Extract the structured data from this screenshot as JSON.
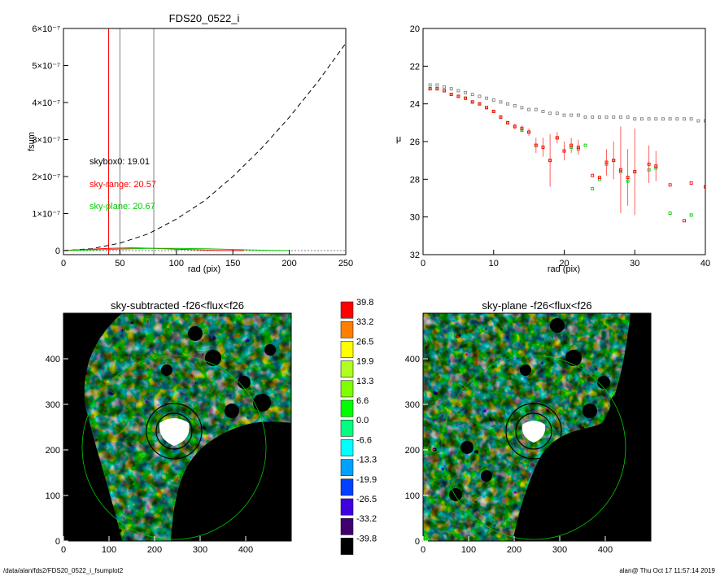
{
  "chart_data": [
    {
      "type": "line",
      "title": "FDS20_0522_i",
      "xlabel": "rad (pix)",
      "ylabel": "fsum",
      "xlim": [
        0,
        250
      ],
      "ylim": [
        0,
        6e-07
      ],
      "x_ticks": [
        "0",
        "50",
        "100",
        "150",
        "200",
        "250"
      ],
      "y_ticks": [
        "0",
        "1×10⁻⁷",
        "2×10⁻⁷",
        "3×10⁻⁷",
        "4×10⁻⁷",
        "5×10⁻⁷",
        "6×10⁻⁷"
      ],
      "vlines": [
        {
          "x": 40,
          "color": "#ff0000"
        },
        {
          "x": 50,
          "color": "#808080"
        },
        {
          "x": 80,
          "color": "#808080"
        }
      ],
      "series": [
        {
          "style": "dashed",
          "color": "#000000",
          "x": [
            0,
            25,
            50,
            75,
            100,
            125,
            150,
            175,
            200,
            225,
            250
          ],
          "values": [
            0,
            5e-09,
            2e-08,
            4.5e-08,
            8.5e-08,
            1.35e-07,
            2e-07,
            2.75e-07,
            3.6e-07,
            4.55e-07,
            5.6e-07
          ]
        },
        {
          "style": "solid",
          "color": "#ff0000",
          "x": [
            0,
            20,
            40,
            60,
            80,
            100,
            120,
            140,
            160
          ],
          "values": [
            0,
            3e-09,
            6e-09,
            7e-09,
            6e-09,
            4e-09,
            2e-09,
            0.0,
            0.0
          ]
        },
        {
          "style": "solid",
          "color": "#00cc00",
          "x": [
            0,
            25,
            50,
            75,
            100,
            125,
            150,
            175,
            200
          ],
          "values": [
            0,
            2e-09,
            4e-09,
            6e-09,
            6e-09,
            5e-09,
            3e-09,
            1e-09,
            0.0
          ]
        }
      ],
      "annotations": [
        {
          "text": "skybox0: 19.01",
          "color": "#000000"
        },
        {
          "text": "sky-range: 20.57",
          "color": "#ff0000"
        },
        {
          "text": "sky-plane: 20.67",
          "color": "#00cc00"
        }
      ]
    },
    {
      "type": "scatter",
      "xlabel": "rad (pix)",
      "ylabel": "μ",
      "xlim": [
        0,
        40
      ],
      "ylim": [
        32,
        20
      ],
      "x_ticks": [
        "0",
        "10",
        "20",
        "30",
        "40"
      ],
      "y_ticks": [
        "20",
        "22",
        "24",
        "26",
        "28",
        "30",
        "32"
      ],
      "series": [
        {
          "color": "#808080",
          "x": [
            1,
            2,
            3,
            4,
            5,
            6,
            7,
            8,
            9,
            10,
            11,
            12,
            13,
            14,
            15,
            16,
            17,
            18,
            19,
            20,
            21,
            22,
            23,
            24,
            25,
            26,
            27,
            28,
            29,
            30,
            31,
            32,
            33,
            34,
            35,
            36,
            37,
            38,
            39,
            40
          ],
          "values": [
            23.0,
            23.0,
            23.1,
            23.2,
            23.3,
            23.4,
            23.5,
            23.6,
            23.7,
            23.8,
            23.9,
            24.0,
            24.1,
            24.2,
            24.3,
            24.3,
            24.4,
            24.5,
            24.5,
            24.6,
            24.6,
            24.6,
            24.7,
            24.7,
            24.7,
            24.7,
            24.7,
            24.7,
            24.7,
            24.8,
            24.8,
            24.8,
            24.8,
            24.8,
            24.8,
            24.8,
            24.8,
            24.8,
            24.9,
            24.9
          ]
        },
        {
          "color": "#00cc00",
          "x": [
            1,
            2,
            3,
            4,
            5,
            6,
            7,
            8,
            9,
            10,
            11,
            12,
            13,
            14,
            15,
            16,
            17,
            18,
            19,
            20,
            21,
            22,
            23,
            24,
            25,
            26,
            27,
            28,
            29,
            30,
            32,
            33,
            35,
            38
          ],
          "values": [
            23.2,
            23.2,
            23.3,
            23.5,
            23.6,
            23.7,
            23.9,
            24.0,
            24.2,
            24.4,
            24.7,
            25.0,
            25.2,
            25.4,
            25.5,
            26.2,
            26.3,
            27.0,
            25.8,
            26.5,
            26.3,
            26.4,
            26.2,
            28.5,
            28.0,
            27.2,
            27.0,
            27.6,
            28.1,
            27.6,
            27.5,
            27.4,
            29.8,
            29.9
          ]
        },
        {
          "color": "#ff0000",
          "x": [
            1,
            2,
            3,
            4,
            5,
            6,
            7,
            8,
            9,
            10,
            11,
            12,
            13,
            14,
            15,
            16,
            17,
            18,
            19,
            20,
            21,
            22,
            24,
            25,
            26,
            27,
            28,
            29,
            30,
            32,
            33,
            35,
            37,
            38,
            40
          ],
          "values": [
            23.2,
            23.2,
            23.3,
            23.5,
            23.6,
            23.7,
            23.9,
            24.0,
            24.2,
            24.4,
            24.7,
            25.0,
            25.2,
            25.3,
            25.5,
            26.2,
            26.3,
            27.0,
            25.8,
            26.5,
            26.2,
            26.3,
            27.8,
            27.9,
            27.1,
            27.0,
            27.5,
            27.9,
            27.6,
            27.2,
            27.3,
            28.3,
            30.2,
            28.2,
            28.4
          ],
          "err": [
            0.05,
            0.05,
            0.05,
            0.05,
            0.05,
            0.05,
            0.05,
            0.05,
            0.05,
            0.05,
            0.1,
            0.1,
            0.15,
            0.15,
            0.2,
            0.4,
            0.5,
            1.4,
            0.3,
            0.5,
            0.4,
            0.4,
            0,
            0,
            0.7,
            1.0,
            2.3,
            1.5,
            2.3,
            1.0,
            0.8,
            0,
            0,
            0,
            0
          ]
        }
      ]
    },
    {
      "type": "heatmap",
      "title": "sky-subtracted -f26<flux<f26",
      "xlim": [
        0,
        500
      ],
      "ylim": [
        0,
        500
      ],
      "x_ticks": [
        "0",
        "100",
        "200",
        "300",
        "400"
      ],
      "y_ticks": [
        "0",
        "100",
        "200",
        "300",
        "400"
      ]
    },
    {
      "type": "heatmap",
      "title": "sky-plane -f26<flux<f26",
      "xlim": [
        0,
        500
      ],
      "ylim": [
        0,
        500
      ],
      "x_ticks": [
        "0",
        "100",
        "200",
        "300",
        "400"
      ],
      "y_ticks": [
        "0",
        "100",
        "200",
        "300",
        "400"
      ]
    }
  ],
  "colorbar": {
    "labels": [
      "39.8",
      "33.2",
      "26.5",
      "19.9",
      "13.3",
      "6.6",
      "0.0",
      "-6.6",
      "-13.3",
      "-19.9",
      "-26.5",
      "-33.2",
      "-39.8"
    ],
    "colors": [
      "#ff0000",
      "#ff8000",
      "#ffff00",
      "#b0ff20",
      "#80ff00",
      "#00ff00",
      "#00ff80",
      "#00ffff",
      "#00a0ff",
      "#0040ff",
      "#4000e0",
      "#400070",
      "#000000"
    ]
  },
  "footer": {
    "left": "/data/alan/fds2/FDS20_0522_i_fsumplot2",
    "right": "alan@  Thu Oct 17 11:57:14 2019"
  }
}
